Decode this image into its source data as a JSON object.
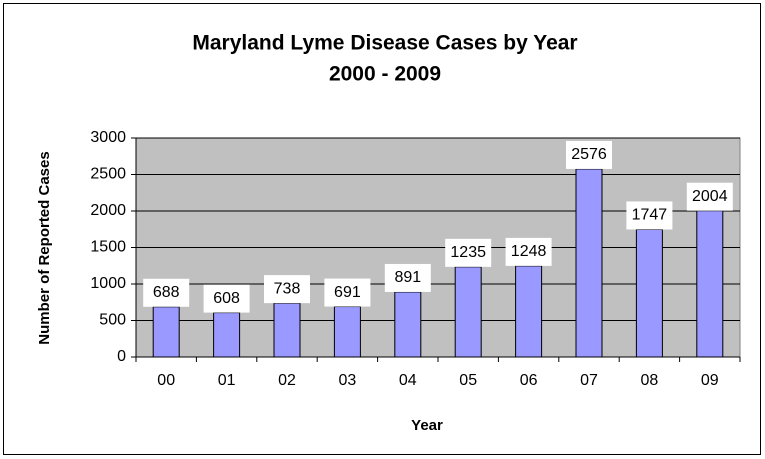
{
  "chart_data": {
    "type": "bar",
    "title": "Maryland Lyme Disease Cases by Year",
    "subtitle": "2000 - 2009",
    "x_label": "Year",
    "y_label": "Number of Reported Cases",
    "categories": [
      "00",
      "01",
      "02",
      "03",
      "04",
      "05",
      "06",
      "07",
      "08",
      "09"
    ],
    "values": [
      688,
      608,
      738,
      691,
      891,
      1235,
      1248,
      2576,
      1747,
      2004
    ],
    "color": "#9999ff",
    "ylim": [
      0,
      3000
    ],
    "yticks": [
      0,
      500,
      1000,
      1500,
      2000,
      2500,
      3000
    ],
    "grid": true
  }
}
